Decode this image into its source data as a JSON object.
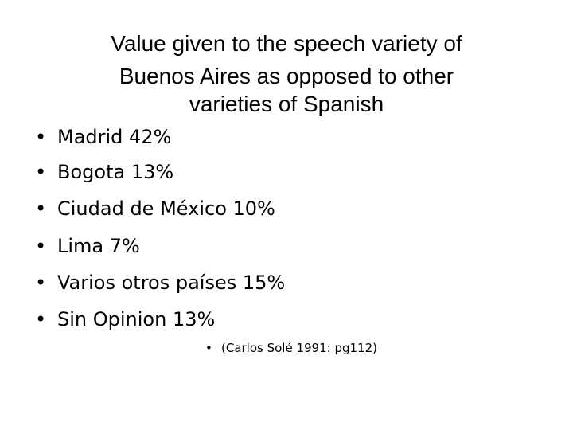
{
  "title": {
    "lines": [
      "Value given to the speech variety of",
      "Buenos Aires as opposed to other",
      "varieties of Spanish"
    ]
  },
  "bullets": [
    "Madrid 42%",
    "Bogota 13%",
    "Ciudad de México 10%",
    "Lima 7%",
    "Varios otros países 15%",
    "Sin Opinion 13%"
  ],
  "citation": "(Carlos Solé 1991: pg112)"
}
